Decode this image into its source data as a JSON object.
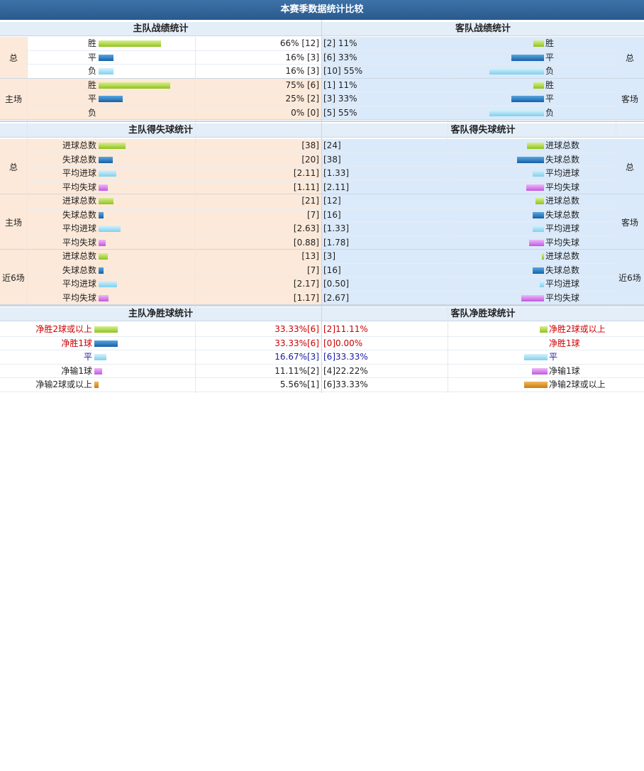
{
  "title": "本赛季数据统计比较",
  "headers": {
    "home_record": "主队战绩统计",
    "away_record": "客队战绩统计",
    "home_goals": "主队得失球统计",
    "away_goals": "客队得失球统计",
    "home_net": "主队净胜球统计",
    "away_net": "客队净胜球统计"
  },
  "colors": {
    "green": "#8fc31f",
    "blue": "#1560a8",
    "cyan": "#7fd0ee",
    "purple": "#c058e3",
    "orange": "#c87d0b",
    "home_bg": "#fde9d9",
    "away_bg": "#dbeafa",
    "header_bg": "#2a5a8e"
  },
  "record": {
    "groups": [
      {
        "label_home": "总",
        "label_away": "总",
        "rows": [
          {
            "label": "胜",
            "home": "66% [12]",
            "away": "[2] 11%",
            "home_pct": 66,
            "away_pct": 11,
            "color": "g"
          },
          {
            "label": "平",
            "home": "16% [3]",
            "away": "[6] 33%",
            "home_pct": 16,
            "away_pct": 33,
            "color": "b"
          },
          {
            "label": "负",
            "home": "16% [3]",
            "away": "[10] 55%",
            "home_pct": 16,
            "away_pct": 55,
            "color": "c"
          }
        ]
      },
      {
        "label_home": "主场",
        "label_away": "客场",
        "rows": [
          {
            "label": "胜",
            "home": "75% [6]",
            "away": "[1] 11%",
            "home_pct": 75,
            "away_pct": 11,
            "color": "g"
          },
          {
            "label": "平",
            "home": "25% [2]",
            "away": "[3] 33%",
            "home_pct": 25,
            "away_pct": 33,
            "color": "b"
          },
          {
            "label": "负",
            "home": "0% [0]",
            "away": "[5] 55%",
            "home_pct": 0,
            "away_pct": 55,
            "color": "c"
          }
        ]
      }
    ]
  },
  "goals": {
    "groups": [
      {
        "label_home": "总",
        "label_away": "总",
        "rows": [
          {
            "label": "进球总数",
            "home": "[38]",
            "away": "[24]",
            "home_w": 38,
            "away_w": 24,
            "color": "g"
          },
          {
            "label": "失球总数",
            "home": "[20]",
            "away": "[38]",
            "home_w": 20,
            "away_w": 38,
            "color": "b"
          },
          {
            "label": "平均进球",
            "home": "[2.11]",
            "away": "[1.33]",
            "home_w": 25,
            "away_w": 16,
            "color": "c"
          },
          {
            "label": "平均失球",
            "home": "[1.11]",
            "away": "[2.11]",
            "home_w": 13,
            "away_w": 25,
            "color": "p"
          }
        ]
      },
      {
        "label_home": "主场",
        "label_away": "客场",
        "rows": [
          {
            "label": "进球总数",
            "home": "[21]",
            "away": "[12]",
            "home_w": 21,
            "away_w": 12,
            "color": "g"
          },
          {
            "label": "失球总数",
            "home": "[7]",
            "away": "[16]",
            "home_w": 7,
            "away_w": 16,
            "color": "b"
          },
          {
            "label": "平均进球",
            "home": "[2.63]",
            "away": "[1.33]",
            "home_w": 31,
            "away_w": 16,
            "color": "c"
          },
          {
            "label": "平均失球",
            "home": "[0.88]",
            "away": "[1.78]",
            "home_w": 10,
            "away_w": 21,
            "color": "p"
          }
        ]
      },
      {
        "label_home": "近6场",
        "label_away": "近6场",
        "rows": [
          {
            "label": "进球总数",
            "home": "[13]",
            "away": "[3]",
            "home_w": 13,
            "away_w": 3,
            "color": "g"
          },
          {
            "label": "失球总数",
            "home": "[7]",
            "away": "[16]",
            "home_w": 7,
            "away_w": 16,
            "color": "b"
          },
          {
            "label": "平均进球",
            "home": "[2.17]",
            "away": "[0.50]",
            "home_w": 26,
            "away_w": 6,
            "color": "c"
          },
          {
            "label": "平均失球",
            "home": "[1.17]",
            "away": "[2.67]",
            "home_w": 14,
            "away_w": 32,
            "color": "p"
          }
        ]
      }
    ]
  },
  "net": {
    "rows": [
      {
        "label": "净胜2球或以上",
        "home": "33.33%[6]",
        "away": "[2]11.11%",
        "home_pct": 33.33,
        "away_pct": 11.11,
        "color": "g",
        "style": "red"
      },
      {
        "label": "净胜1球",
        "home": "33.33%[6]",
        "away": "[0]0.00%",
        "home_pct": 33.33,
        "away_pct": 0,
        "color": "b",
        "style": "red"
      },
      {
        "label": "平",
        "home": "16.67%[3]",
        "away": "[6]33.33%",
        "home_pct": 16.67,
        "away_pct": 33.33,
        "color": "c",
        "style": "blue"
      },
      {
        "label": "净输1球",
        "home": "11.11%[2]",
        "away": "[4]22.22%",
        "home_pct": 11.11,
        "away_pct": 22.22,
        "color": "p",
        "style": ""
      },
      {
        "label": "净输2球或以上",
        "home": "5.56%[1]",
        "away": "[6]33.33%",
        "home_pct": 5.56,
        "away_pct": 33.33,
        "color": "o",
        "style": ""
      }
    ]
  }
}
